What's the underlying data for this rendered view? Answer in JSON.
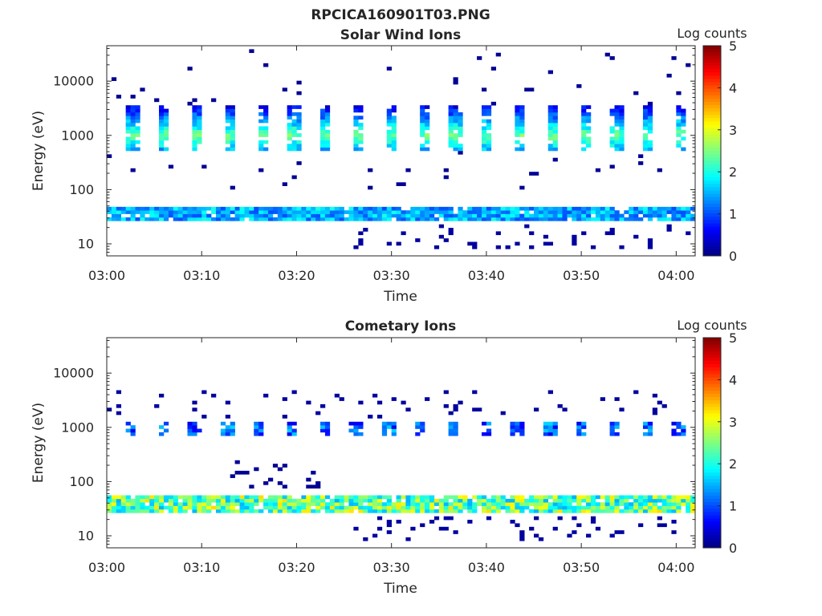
{
  "figure_title": "RPCICA160901T03.PNG",
  "colors": {
    "axis": "#262626",
    "background": "#ffffff"
  },
  "chart_data": [
    {
      "type": "heatmap",
      "title": "Solar Wind Ions",
      "xlabel": "Time",
      "ylabel": "Energy (eV)",
      "x_ticks": [
        "03:00",
        "03:10",
        "03:20",
        "03:30",
        "03:40",
        "03:50",
        "04:00"
      ],
      "x_range_minutes": [
        0,
        62
      ],
      "y_ticks": [
        "10",
        "100",
        "1000",
        "10000"
      ],
      "y_tick_values": [
        10,
        100,
        1000,
        10000
      ],
      "y_scale": "log",
      "y_range_eV": [
        6,
        45000
      ],
      "colorbar": {
        "label": "Log counts",
        "ticks": [
          "0",
          "1",
          "2",
          "3",
          "4",
          "5"
        ],
        "range": [
          0,
          5
        ],
        "colormap": "jet"
      },
      "features": {
        "low_energy_band": {
          "energy_range_eV": [
            25,
            50
          ],
          "log_counts": [
            1,
            2
          ]
        },
        "high_energy_bursts": {
          "energy_range_eV": [
            500,
            3500
          ],
          "log_counts": [
            1,
            2.7
          ],
          "period_minutes": 3.4
        },
        "sparse_counts": {
          "energy_range_eV": [
            100,
            40000
          ],
          "log_counts": [
            0,
            0.3
          ]
        },
        "lowest_energies": {
          "energy_range_eV": [
            8,
            22
          ],
          "log_counts": [
            0,
            0.3
          ]
        }
      }
    },
    {
      "type": "heatmap",
      "title": "Cometary Ions",
      "xlabel": "Time",
      "ylabel": "Energy (eV)",
      "x_ticks": [
        "03:00",
        "03:10",
        "03:20",
        "03:30",
        "03:40",
        "03:50",
        "04:00"
      ],
      "x_range_minutes": [
        0,
        62
      ],
      "y_ticks": [
        "10",
        "100",
        "1000",
        "10000"
      ],
      "y_tick_values": [
        10,
        100,
        1000,
        10000
      ],
      "y_scale": "log",
      "y_range_eV": [
        6,
        45000
      ],
      "colorbar": {
        "label": "Log counts",
        "ticks": [
          "0",
          "1",
          "2",
          "3",
          "4",
          "5"
        ],
        "range": [
          0,
          5
        ],
        "colormap": "jet"
      },
      "features": {
        "low_energy_band": {
          "energy_range_eV": [
            25,
            55
          ],
          "log_counts": [
            1.5,
            3.3
          ]
        },
        "thousand_eV_bursts": {
          "energy_range_eV": [
            750,
            1200
          ],
          "log_counts": [
            0.5,
            1.7
          ]
        },
        "upper_bursts": {
          "energy_range_eV": [
            1500,
            5000
          ],
          "log_counts": [
            0,
            0.3
          ]
        },
        "intermediate_features": {
          "energy_range_eV": [
            70,
            250
          ],
          "log_counts": [
            0,
            0.3
          ]
        },
        "lowest_energies": {
          "energy_range_eV": [
            8,
            22
          ],
          "log_counts": [
            0,
            0.3
          ]
        }
      }
    }
  ]
}
